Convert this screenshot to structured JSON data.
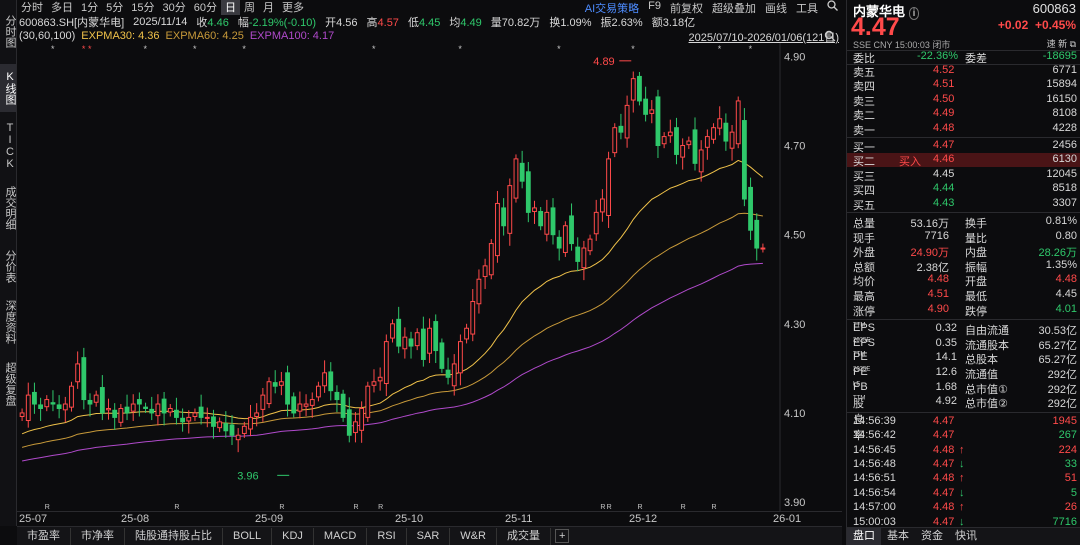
{
  "vertical_tabs": [
    {
      "label": "分时图",
      "active": false
    },
    {
      "label": "K线图",
      "active": true
    },
    {
      "label": "TICK",
      "active": false
    },
    {
      "label": "成交明细",
      "active": false
    },
    {
      "label": "分价表",
      "active": false
    },
    {
      "label": "深度资料",
      "active": false
    },
    {
      "label": "超级复盘",
      "active": false
    }
  ],
  "periods": [
    "分时",
    "多日",
    "1分",
    "5分",
    "15分",
    "30分",
    "60分",
    "日",
    "周",
    "月",
    "更多"
  ],
  "active_period": "日",
  "tools": {
    "ai": "AI交易策略",
    "f9": "F9",
    "fq": "前复权",
    "overlay": "超级叠加",
    "draw": "画线",
    "toolbox": "工具",
    "search_icon": "search-icon"
  },
  "info": {
    "code": "600863.SH[内蒙华电]",
    "date": "2025/11/14",
    "close_label": "收",
    "close": "4.46",
    "chg_label": "幅",
    "chg": "-2.19%(-0.10)",
    "open_label": "开",
    "open": "4.56",
    "high_label": "高",
    "high": "4.57",
    "low_label": "低",
    "low": "4.45",
    "avg_label": "均",
    "avg": "4.49",
    "vol_label": "量",
    "vol": "70.82万",
    "turn_label": "换",
    "turn": "1.09%",
    "amp_label": "振",
    "amp": "2.63%",
    "amt_label": "额",
    "amt": "3.18亿"
  },
  "ema": {
    "params": "(30,60,100)",
    "ema30": "EXPMA30: 4.36",
    "ema60": "EXPMA60: 4.25",
    "ema100": "EXPMA100: 4.17",
    "range": "2025/07/10-2026/01/06(121日)"
  },
  "colors": {
    "up": "#ff4a4a",
    "down": "#2fc86b",
    "ema30": "#f0c24a",
    "ema60": "#c89a3a",
    "ema100": "#b04acb"
  },
  "chart_data": {
    "type": "candlestick",
    "y_ticks": [
      "4.90",
      "4.70",
      "4.50",
      "4.30",
      "4.10",
      "3.90"
    ],
    "ylim": [
      3.88,
      4.93
    ],
    "x_ticks": [
      "25-07",
      "25-08",
      "25-09",
      "25-10",
      "25-11",
      "25-12",
      "26-01"
    ],
    "high_label": "4.89",
    "low_label": "3.96"
  },
  "x_labels": [
    "25-07",
    "25-08",
    "25-09",
    "25-10",
    "25-11",
    "25-12",
    "26-01"
  ],
  "bottom_tabs": [
    "市盈率",
    "市净率",
    "陆股通持股占比",
    "BOLL",
    "KDJ",
    "MACD",
    "RSI",
    "SAR",
    "W&R",
    "成交量"
  ],
  "quote": {
    "name": "内蒙华电",
    "code": "600863",
    "price": "4.47",
    "chg": "+0.02",
    "chg_pct": "+0.45%",
    "sub": "SSE  CNY  15:00:03  闭市",
    "ops": "速 新 ⧉",
    "weibi_label": "委比",
    "weibi": "-22.36%",
    "weicha_label": "委差",
    "weicha": "-18695",
    "asks": [
      {
        "label": "卖五",
        "price": "4.52",
        "vol": "6771"
      },
      {
        "label": "卖四",
        "price": "4.51",
        "vol": "15894"
      },
      {
        "label": "卖三",
        "price": "4.50",
        "vol": "16150"
      },
      {
        "label": "卖二",
        "price": "4.49",
        "vol": "8108"
      },
      {
        "label": "卖一",
        "price": "4.48",
        "vol": "4228"
      }
    ],
    "bids": [
      {
        "label": "买一",
        "price": "4.47",
        "vol": "2456",
        "mark": ""
      },
      {
        "label": "买二",
        "price": "4.46",
        "vol": "6130",
        "mark": "买入"
      },
      {
        "label": "买三",
        "price": "4.45",
        "vol": "12045",
        "mark": ""
      },
      {
        "label": "买四",
        "price": "4.44",
        "vol": "8518",
        "mark": ""
      },
      {
        "label": "买五",
        "price": "4.43",
        "vol": "3307",
        "mark": ""
      }
    ],
    "stats": [
      [
        "总量",
        "53.16万",
        "换手",
        "0.81%"
      ],
      [
        "现手",
        "7716",
        "量比",
        "0.80"
      ],
      [
        "外盘",
        "24.90万",
        "内盘",
        "28.26万"
      ],
      [
        "总额",
        "2.38亿",
        "振幅",
        "1.35%"
      ],
      [
        "均价",
        "4.48",
        "开盘",
        "4.48"
      ],
      [
        "最高",
        "4.51",
        "最低",
        "4.45"
      ],
      [
        "涨停",
        "4.90",
        "跌停",
        "4.01"
      ]
    ],
    "fund": [
      [
        "EPS",
        "TTM",
        "0.32",
        "自由流通",
        "30.53亿"
      ],
      [
        "EPS",
        "2025E",
        "0.35",
        "流通股本",
        "65.27亿"
      ],
      [
        "PE",
        "TTM",
        "14.1",
        "总股本",
        "65.27亿"
      ],
      [
        "PE",
        "2025E",
        "12.6",
        "流通值",
        "292亿"
      ],
      [
        "PB",
        "LF",
        "1.68",
        "总市值①",
        "292亿"
      ],
      [
        "股息率",
        "TTM",
        "4.92",
        "总市值②",
        "292亿"
      ]
    ],
    "ticks": [
      {
        "time": "14:56:39",
        "price": "4.47",
        "dir": "",
        "vol": "1945",
        "c": "up"
      },
      {
        "time": "14:56:42",
        "price": "4.47",
        "dir": "",
        "vol": "267",
        "c": "dn"
      },
      {
        "time": "14:56:45",
        "price": "4.48",
        "dir": "↑",
        "vol": "224",
        "c": "up"
      },
      {
        "time": "14:56:48",
        "price": "4.47",
        "dir": "↓",
        "vol": "33",
        "c": "dn"
      },
      {
        "time": "14:56:51",
        "price": "4.48",
        "dir": "↑",
        "vol": "51",
        "c": "up"
      },
      {
        "time": "14:56:54",
        "price": "4.47",
        "dir": "↓",
        "vol": "5",
        "c": "dn"
      },
      {
        "time": "14:57:00",
        "price": "4.48",
        "dir": "↑",
        "vol": "26",
        "c": "up"
      },
      {
        "time": "15:00:03",
        "price": "4.47",
        "dir": "↓",
        "vol": "7716",
        "c": "dn"
      }
    ],
    "tabs": [
      "盘口",
      "基本",
      "资金",
      "快讯"
    ]
  }
}
